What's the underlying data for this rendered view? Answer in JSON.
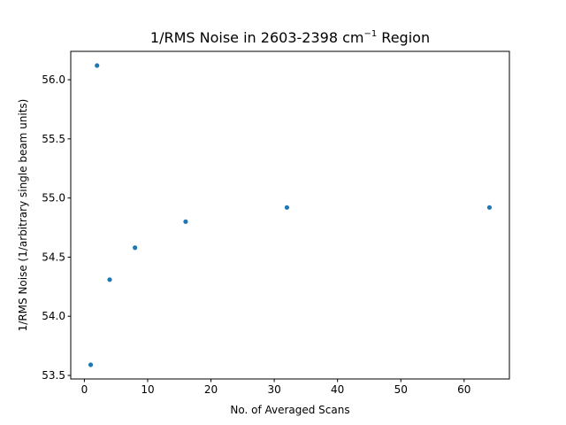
{
  "chart_data": {
    "type": "scatter",
    "title": {
      "prefix": "1/RMS Noise in 2603-2398 cm",
      "superscript": "−1",
      "suffix": " Region"
    },
    "xlabel": "No. of Averaged Scans",
    "ylabel": "1/RMS Noise (1/arbitrary single beam units)",
    "xlim": [
      -2.15,
      67.15
    ],
    "ylim": [
      53.47,
      56.24
    ],
    "xticks": [
      0,
      10,
      20,
      30,
      40,
      50,
      60
    ],
    "yticks": [
      53.5,
      54.0,
      54.5,
      55.0,
      55.5,
      56.0
    ],
    "ytick_labels": [
      "53.5",
      "54.0",
      "54.5",
      "55.0",
      "55.5",
      "56.0"
    ],
    "grid": false,
    "marker_color": "#1f77b4",
    "series": [
      {
        "x": [
          1,
          2,
          4,
          8,
          16,
          32,
          64
        ],
        "y": [
          53.59,
          56.12,
          54.31,
          54.58,
          54.8,
          54.92,
          54.92
        ]
      }
    ]
  }
}
